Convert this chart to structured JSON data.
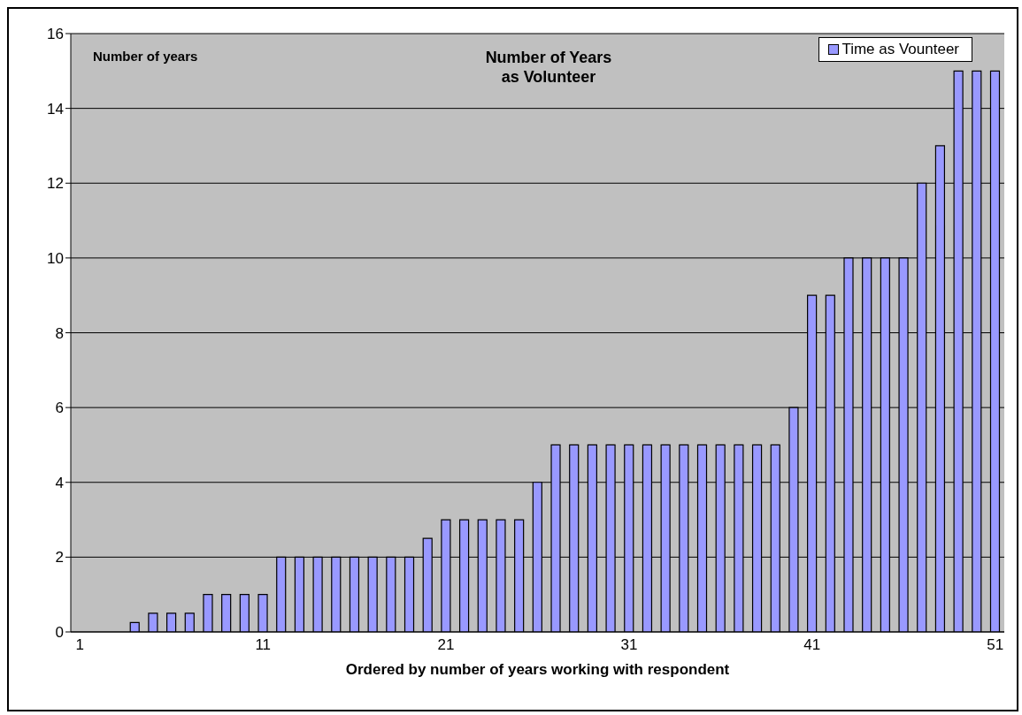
{
  "chart_data": {
    "type": "bar",
    "title": "Number of Years as Volunteer",
    "ylabel": "Number of years",
    "xlabel": "Ordered by number of years working with respondent",
    "categories": [
      "1",
      null,
      null,
      null,
      null,
      null,
      null,
      null,
      null,
      null,
      "11",
      null,
      null,
      null,
      null,
      null,
      null,
      null,
      null,
      null,
      "21",
      null,
      null,
      null,
      null,
      null,
      null,
      null,
      null,
      null,
      "31",
      null,
      null,
      null,
      null,
      null,
      null,
      null,
      null,
      null,
      "41",
      null,
      null,
      null,
      null,
      null,
      null,
      null,
      null,
      null,
      "51"
    ],
    "series": [
      {
        "name": "Time as Vounteer",
        "color": "#9999ff",
        "values": [
          0,
          0,
          0,
          0.25,
          0.5,
          0.5,
          0.5,
          1,
          1,
          1,
          1,
          2,
          2,
          2,
          2,
          2,
          2,
          2,
          2,
          2.5,
          3,
          3,
          3,
          3,
          3,
          4,
          5,
          5,
          5,
          5,
          5,
          5,
          5,
          5,
          5,
          5,
          5,
          5,
          5,
          6,
          9,
          9,
          10,
          10,
          10,
          10,
          12,
          13,
          15,
          15,
          15
        ]
      }
    ],
    "ylim": [
      0,
      16
    ],
    "yticks": [
      0,
      2,
      4,
      6,
      8,
      10,
      12,
      14,
      16
    ],
    "grid": "y",
    "legend": "top right"
  }
}
